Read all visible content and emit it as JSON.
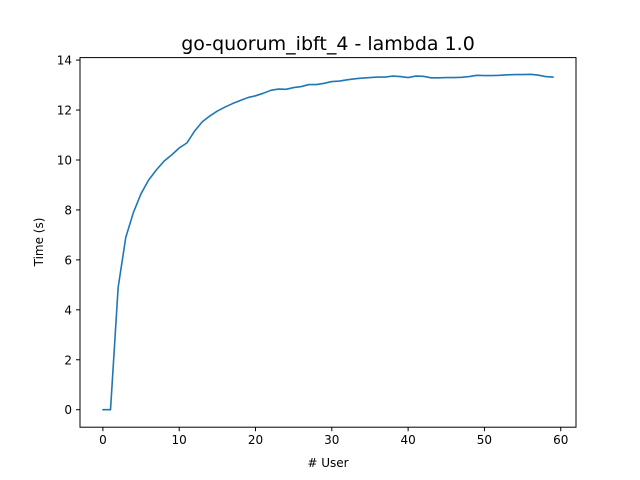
{
  "chart_data": {
    "type": "line",
    "title": "go-quorum_ibft_4 - lambda 1.0",
    "xlabel": "# User",
    "ylabel": "Time (s)",
    "xlim": [
      -3,
      62
    ],
    "ylim": [
      -0.7,
      14.1
    ],
    "xticks": [
      0,
      10,
      20,
      30,
      40,
      50,
      60
    ],
    "yticks": [
      0,
      2,
      4,
      6,
      8,
      10,
      12,
      14
    ],
    "grid": false,
    "legend": "none",
    "series": [
      {
        "color": "#1f77b4",
        "x": [
          0,
          1,
          2,
          3,
          4,
          5,
          6,
          7,
          8,
          9,
          10,
          11,
          12,
          13,
          14,
          15,
          16,
          17,
          18,
          19,
          20,
          21,
          22,
          23,
          24,
          25,
          26,
          27,
          28,
          29,
          30,
          31,
          32,
          33,
          34,
          35,
          36,
          37,
          38,
          39,
          40,
          41,
          42,
          43,
          44,
          45,
          46,
          47,
          48,
          49,
          50,
          51,
          52,
          53,
          54,
          55,
          56,
          57,
          58,
          59
        ],
        "values": [
          0.0,
          0.0,
          4.9,
          6.9,
          7.9,
          8.65,
          9.2,
          9.6,
          9.95,
          10.2,
          10.48,
          10.68,
          11.15,
          11.52,
          11.76,
          11.96,
          12.12,
          12.26,
          12.38,
          12.5,
          12.57,
          12.67,
          12.79,
          12.84,
          12.83,
          12.9,
          12.94,
          13.02,
          13.02,
          13.07,
          13.14,
          13.16,
          13.21,
          13.25,
          13.28,
          13.3,
          13.32,
          13.32,
          13.36,
          13.34,
          13.3,
          13.36,
          13.35,
          13.29,
          13.29,
          13.3,
          13.3,
          13.31,
          13.34,
          13.39,
          13.38,
          13.38,
          13.39,
          13.41,
          13.42,
          13.42,
          13.43,
          13.4,
          13.34,
          13.32
        ]
      }
    ]
  }
}
